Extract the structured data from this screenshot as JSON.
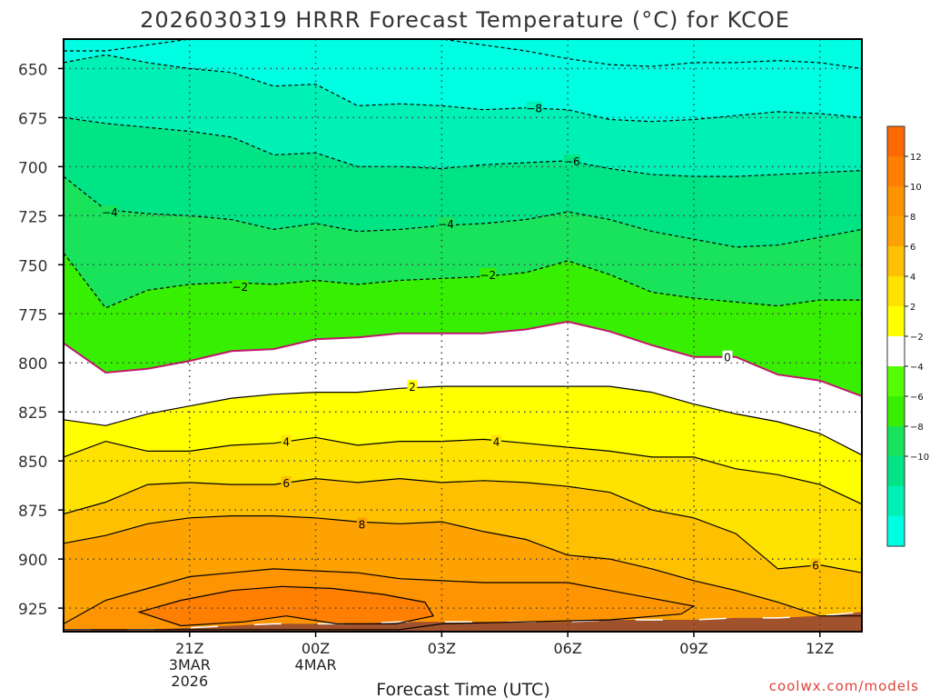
{
  "chart_data": {
    "type": "contour",
    "title": "2026030319 HRRR Forecast Temperature (°C) for KCOE",
    "xlabel": "Forecast Time (UTC)",
    "ylabel": "",
    "credit": "coolwx.com/models",
    "yticks": [
      650,
      675,
      700,
      725,
      750,
      775,
      800,
      825,
      850,
      875,
      900,
      925
    ],
    "xticks": [
      {
        "hour": 21,
        "label": "21Z",
        "date": "3MAR",
        "year": "2026"
      },
      {
        "hour": 24,
        "label": "00Z",
        "date": "4MAR",
        "year": ""
      },
      {
        "hour": 27,
        "label": "03Z",
        "date": "",
        "year": ""
      },
      {
        "hour": 30,
        "label": "06Z",
        "date": "",
        "year": ""
      },
      {
        "hour": 33,
        "label": "09Z",
        "date": "",
        "year": ""
      },
      {
        "hour": 36,
        "label": "12Z",
        "date": "",
        "year": ""
      }
    ],
    "xlim": [
      18,
      37
    ],
    "ylim": [
      635,
      937
    ],
    "colorbar": {
      "labels": [
        "12",
        "10",
        "8",
        "6",
        "4",
        "2",
        "−2",
        "−4",
        "−6",
        "−8",
        "−10"
      ],
      "colors": [
        "#fd6a02",
        "#fe7f01",
        "#fe9402",
        "#fea202",
        "#fec000",
        "#fee300",
        "#ffff00",
        "#ffffff",
        "#56fe05",
        "#37ef01",
        "#19e25b",
        "#00e486",
        "#00f1b5",
        "#00fee2"
      ]
    },
    "hours": [
      18,
      19,
      20,
      21,
      22,
      23,
      24,
      25,
      26,
      27,
      28,
      29,
      30,
      31,
      32,
      33,
      34,
      35,
      36,
      37
    ],
    "contours": [
      {
        "level": -10,
        "label": "",
        "dashed": true,
        "color": "#000000",
        "fill": "#00fee2",
        "p": [
          641,
          641,
          638,
          635,
          635,
          635,
          635,
          635,
          635,
          635,
          638,
          641,
          645,
          648,
          649,
          647,
          647,
          646,
          647,
          650
        ],
        "labels": []
      },
      {
        "level": -8,
        "label": "−8",
        "dashed": true,
        "color": "#000000",
        "fill": "#00f1b5",
        "p": [
          647,
          643,
          647,
          650,
          652,
          659,
          658,
          669,
          668,
          669,
          671,
          670,
          671,
          676,
          677,
          676,
          674,
          672,
          673,
          675
        ],
        "labels": [
          {
            "hour": 29.2,
            "level": 670
          }
        ]
      },
      {
        "level": -6,
        "label": "−6",
        "dashed": true,
        "color": "#000000",
        "fill": "#00e486",
        "p": [
          675,
          678,
          680,
          682,
          685,
          694,
          693,
          700,
          700,
          701,
          699,
          698,
          697,
          701,
          704,
          705,
          705,
          704,
          703,
          702
        ],
        "labels": [
          {
            "hour": 30.1,
            "level": 697
          }
        ]
      },
      {
        "level": -4,
        "label": "−4",
        "dashed": true,
        "color": "#000000",
        "fill": "#19e25b",
        "p": [
          705,
          722,
          724,
          725,
          727,
          732,
          729,
          733,
          732,
          730,
          729,
          727,
          723,
          727,
          733,
          737,
          741,
          740,
          736,
          732
        ],
        "labels": [
          {
            "hour": 19.1,
            "level": 723
          },
          {
            "hour": 27.1,
            "level": 729
          }
        ]
      },
      {
        "level": -2,
        "label": "−2",
        "dashed": true,
        "color": "#000000",
        "fill": "#37ef01",
        "p": [
          744,
          772,
          763,
          760,
          759,
          760,
          758,
          760,
          758,
          757,
          756,
          754,
          748,
          755,
          764,
          767,
          769,
          771,
          768,
          768
        ],
        "labels": [
          {
            "hour": 22.2,
            "level": 761
          },
          {
            "hour": 28.1,
            "level": 755
          }
        ]
      },
      {
        "level": 0,
        "label": "0",
        "dashed": false,
        "color": "#c0186b",
        "fill": "#ffffff",
        "p": [
          790,
          805,
          803,
          799,
          794,
          793,
          788,
          787,
          785,
          785,
          785,
          783,
          779,
          784,
          791,
          797,
          797,
          806,
          809,
          817
        ],
        "labels": [
          {
            "hour": 33.8,
            "level": 797
          }
        ]
      },
      {
        "level": 2,
        "label": "2",
        "dashed": false,
        "color": "#000000",
        "fill": "#ffff00",
        "p": [
          829,
          832,
          826,
          822,
          818,
          816,
          815,
          815,
          813,
          812,
          812,
          812,
          812,
          812,
          815,
          821,
          826,
          830,
          836,
          847
        ],
        "labels": [
          {
            "hour": 26.3,
            "level": 812
          }
        ]
      },
      {
        "level": 4,
        "label": "4",
        "dashed": false,
        "color": "#000000",
        "fill": "#fee300",
        "p": [
          848,
          840,
          845,
          845,
          842,
          841,
          838,
          842,
          840,
          840,
          839,
          841,
          843,
          845,
          848,
          848,
          854,
          857,
          862,
          872
        ],
        "labels": [
          {
            "hour": 23.3,
            "level": 840
          },
          {
            "hour": 28.3,
            "level": 840
          }
        ]
      },
      {
        "level": 6,
        "label": "6",
        "dashed": false,
        "color": "#000000",
        "fill": "#fec000",
        "p": [
          877,
          871,
          862,
          861,
          862,
          862,
          859,
          861,
          859,
          861,
          860,
          861,
          863,
          866,
          875,
          879,
          887,
          905,
          903,
          907
        ],
        "labels": [
          {
            "hour": 23.3,
            "level": 861
          },
          {
            "hour": 35.9,
            "level": 903
          }
        ]
      },
      {
        "level": 8,
        "label": "8",
        "dashed": false,
        "color": "#000000",
        "fill": "#fea202",
        "p": [
          892,
          888,
          882,
          879,
          878,
          878,
          879,
          881,
          882,
          881,
          886,
          890,
          898,
          900,
          905,
          911,
          916,
          922,
          929,
          929
        ],
        "labels": [
          {
            "hour": 25.1,
            "level": 882
          }
        ]
      }
    ],
    "closed_contours": [
      {
        "level": 10,
        "fill": "#fe9402",
        "pts": [
          [
            18,
            933
          ],
          [
            19,
            921
          ],
          [
            20,
            915
          ],
          [
            21,
            909
          ],
          [
            22,
            907
          ],
          [
            23,
            905
          ],
          [
            24,
            906
          ],
          [
            25,
            907
          ],
          [
            26,
            910
          ],
          [
            27,
            911
          ],
          [
            28,
            912
          ],
          [
            29,
            912
          ],
          [
            30,
            912
          ],
          [
            31,
            916
          ],
          [
            32,
            920
          ],
          [
            33,
            924
          ],
          [
            32.7,
            928
          ],
          [
            31,
            931
          ],
          [
            29,
            932
          ],
          [
            27,
            933
          ],
          [
            26,
            936
          ],
          [
            22,
            936
          ],
          [
            19,
            936
          ],
          [
            18,
            936
          ]
        ]
      },
      {
        "level": 12,
        "fill": "#fe7f01",
        "pts": [
          [
            19.8,
            927
          ],
          [
            20.8,
            921
          ],
          [
            22,
            916
          ],
          [
            23.2,
            914
          ],
          [
            24.4,
            915
          ],
          [
            25.6,
            918
          ],
          [
            26.6,
            922
          ],
          [
            26.8,
            929
          ],
          [
            25.9,
            933
          ],
          [
            24.5,
            933
          ],
          [
            23.3,
            929
          ],
          [
            22.3,
            932
          ],
          [
            20.8,
            934
          ]
        ]
      }
    ],
    "surface": {
      "color": "#a0522d",
      "p": [
        936,
        936,
        936,
        935,
        934,
        933,
        933,
        933,
        932,
        932,
        932,
        932,
        932,
        931,
        931,
        931,
        930,
        930,
        929,
        927
      ]
    },
    "palette": {
      "contour_black": "#000000",
      "zero_line": "#c0186b",
      "grid_dot": "#444444",
      "frame": "#000000"
    }
  }
}
